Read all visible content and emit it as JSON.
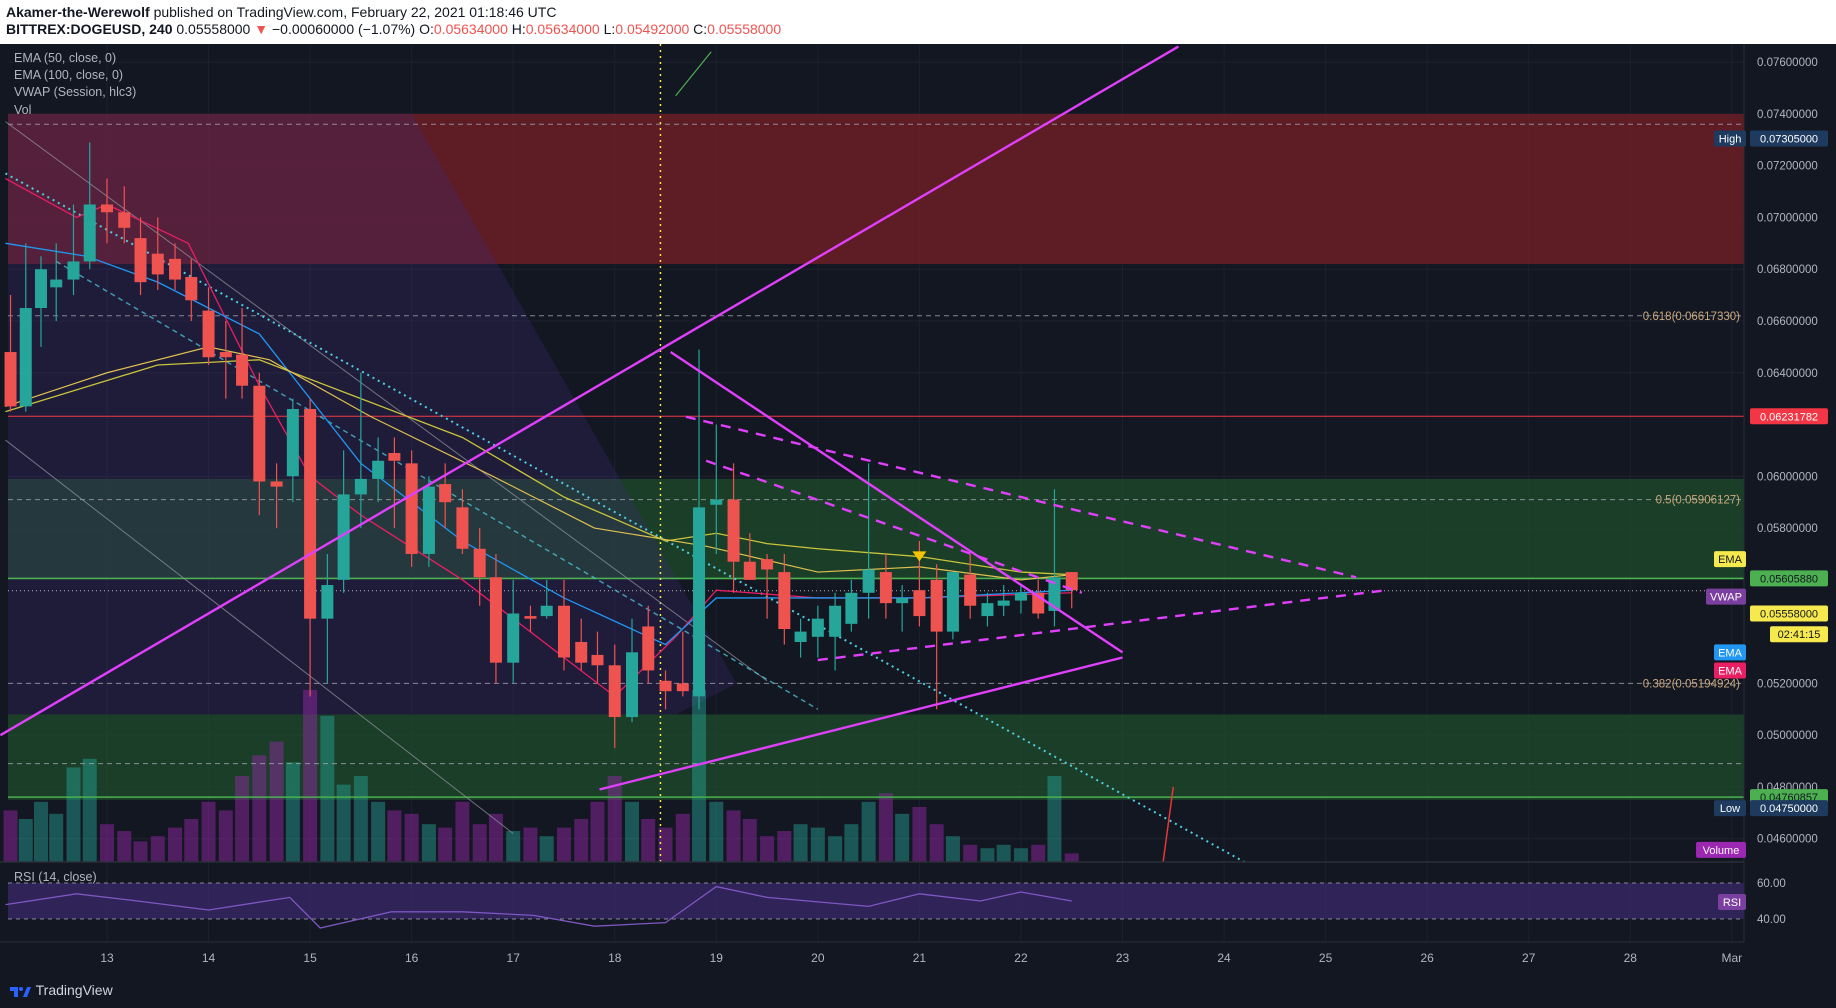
{
  "header": {
    "author": "Akamer-the-Werewolf",
    "published": "published on TradingView.com, February 22, 2021 01:18:46 UTC",
    "symbol": "BITTREX:DOGEUSD, 240",
    "last": "0.05558000",
    "change": "−0.00060000 (−1.07%)",
    "o_label": "O:",
    "o_val": "0.05634000",
    "h_label": "H:",
    "h_val": "0.05634000",
    "l_label": "L:",
    "l_val": "0.05492000",
    "c_label": "C:",
    "c_val": "0.05558000"
  },
  "legend": {
    "ema50": "EMA (50, close, 0)",
    "ema100": "EMA (100, close, 0)",
    "vwap": "VWAP (Session, hlc3)",
    "vol": "Vol",
    "rsi": "RSI (14, close)"
  },
  "colors": {
    "bg": "#131722",
    "up": "#26a69a",
    "down": "#ef5350",
    "magenta": "#e040fb",
    "fib": "#c8a97e",
    "cyan": "#4dd0e1",
    "ema50": "#c9c43a",
    "ema100": "#2196f3",
    "vwap": "#e91e63"
  },
  "price_axis": {
    "ticks": [
      "0.07600000",
      "0.07400000",
      "0.07200000",
      "0.07000000",
      "0.06800000",
      "0.06600000",
      "0.06400000",
      "0.06000000",
      "0.05800000",
      "0.05200000",
      "0.05000000",
      "0.04800000",
      "0.04600000"
    ],
    "tick_values": [
      0.076,
      0.074,
      0.072,
      0.07,
      0.068,
      0.066,
      0.064,
      0.06,
      0.058,
      0.052,
      0.05,
      0.048,
      0.046
    ],
    "min": 0.0451,
    "max": 0.0767
  },
  "rsi_axis": {
    "ticks": [
      "60.00",
      "40.00"
    ],
    "tick_values": [
      60,
      40
    ]
  },
  "time_axis": {
    "labels": [
      "13",
      "14",
      "15",
      "16",
      "17",
      "18",
      "19",
      "20",
      "21",
      "22",
      "23",
      "24",
      "25",
      "26",
      "27",
      "28",
      "Mar"
    ],
    "day_values": [
      13,
      14,
      15,
      16,
      17,
      18,
      19,
      20,
      21,
      22,
      23,
      24,
      25,
      26,
      27,
      28,
      29
    ]
  },
  "axis_badges": {
    "high_label": "High",
    "high_val": "0.07305000",
    "level_red": "0.06231782",
    "ema_label": "EMA",
    "price_green": "0.05605880",
    "vwap_label": "VWAP",
    "last_price": "0.05558000",
    "countdown": "02:41:15",
    "ema100_label": "EMA",
    "ema50_label": "EMA",
    "support_green": "0.04760857",
    "low_label": "Low",
    "low_val": "0.04750000",
    "volume_label": "Volume",
    "rsi_label": "RSI"
  },
  "fib_labels": [
    {
      "text": "0.618(0.06617330)",
      "value": 0.0662
    },
    {
      "text": "0.5(0.05906127)",
      "value": 0.0591
    },
    {
      "text": "0.382(0.05194924)",
      "value": 0.052
    }
  ],
  "chart_data": {
    "type": "candlestick",
    "interval": "240",
    "x_unit": "day of February 2021",
    "candles": [
      [
        12.05,
        0.0648,
        0.067,
        0.0625,
        0.0627
      ],
      [
        12.2,
        0.0627,
        0.069,
        0.0625,
        0.0665
      ],
      [
        12.35,
        0.0665,
        0.0685,
        0.065,
        0.068
      ],
      [
        12.5,
        0.0673,
        0.069,
        0.066,
        0.0676
      ],
      [
        12.67,
        0.0676,
        0.0705,
        0.067,
        0.0683
      ],
      [
        12.83,
        0.0683,
        0.0729,
        0.068,
        0.0705
      ],
      [
        13.0,
        0.0705,
        0.0715,
        0.069,
        0.0702
      ],
      [
        13.17,
        0.0702,
        0.0712,
        0.069,
        0.0696
      ],
      [
        13.33,
        0.0692,
        0.07,
        0.067,
        0.0675
      ],
      [
        13.5,
        0.0686,
        0.07,
        0.0672,
        0.0678
      ],
      [
        13.67,
        0.0684,
        0.069,
        0.0672,
        0.0676
      ],
      [
        13.83,
        0.0677,
        0.0684,
        0.066,
        0.0668
      ],
      [
        14.0,
        0.0664,
        0.0673,
        0.0643,
        0.0646
      ],
      [
        14.17,
        0.0648,
        0.066,
        0.063,
        0.0646
      ],
      [
        14.33,
        0.0647,
        0.0665,
        0.063,
        0.0635
      ],
      [
        14.5,
        0.0635,
        0.064,
        0.0585,
        0.0598
      ],
      [
        14.67,
        0.0598,
        0.0605,
        0.058,
        0.0596
      ],
      [
        14.83,
        0.06,
        0.063,
        0.059,
        0.0626
      ],
      [
        15.0,
        0.0626,
        0.063,
        0.0515,
        0.0545
      ],
      [
        15.17,
        0.0545,
        0.057,
        0.052,
        0.0558
      ],
      [
        15.33,
        0.056,
        0.061,
        0.0555,
        0.0593
      ],
      [
        15.5,
        0.0593,
        0.064,
        0.058,
        0.0599
      ],
      [
        15.67,
        0.0599,
        0.0615,
        0.059,
        0.0606
      ],
      [
        15.83,
        0.0609,
        0.0615,
        0.058,
        0.0606
      ],
      [
        16.0,
        0.0605,
        0.061,
        0.0565,
        0.057
      ],
      [
        16.17,
        0.057,
        0.06,
        0.0565,
        0.0596
      ],
      [
        16.33,
        0.0597,
        0.0605,
        0.058,
        0.059
      ],
      [
        16.5,
        0.0588,
        0.0595,
        0.057,
        0.0572
      ],
      [
        16.67,
        0.0572,
        0.058,
        0.055,
        0.0561
      ],
      [
        16.83,
        0.0561,
        0.057,
        0.052,
        0.0528
      ],
      [
        17.0,
        0.0528,
        0.056,
        0.052,
        0.0547
      ],
      [
        17.17,
        0.0546,
        0.055,
        0.054,
        0.0545
      ],
      [
        17.33,
        0.0546,
        0.056,
        0.0545,
        0.055
      ],
      [
        17.5,
        0.055,
        0.056,
        0.0525,
        0.053
      ],
      [
        17.67,
        0.0536,
        0.0545,
        0.0525,
        0.0528
      ],
      [
        17.83,
        0.0531,
        0.054,
        0.052,
        0.0527
      ],
      [
        18.0,
        0.0527,
        0.0535,
        0.0495,
        0.0507
      ],
      [
        18.17,
        0.0507,
        0.0545,
        0.0505,
        0.0532
      ],
      [
        18.33,
        0.0542,
        0.055,
        0.052,
        0.0525
      ],
      [
        18.5,
        0.0521,
        0.0525,
        0.051,
        0.0517
      ],
      [
        18.67,
        0.052,
        0.054,
        0.0515,
        0.0517
      ],
      [
        18.83,
        0.0515,
        0.0649,
        0.051,
        0.0588
      ],
      [
        19.0,
        0.0589,
        0.062,
        0.057,
        0.0591
      ],
      [
        19.17,
        0.0591,
        0.0605,
        0.0555,
        0.0567
      ],
      [
        19.33,
        0.0567,
        0.0578,
        0.0562,
        0.056
      ],
      [
        19.5,
        0.0568,
        0.057,
        0.0545,
        0.0564
      ],
      [
        19.67,
        0.0563,
        0.057,
        0.0535,
        0.0541
      ],
      [
        19.83,
        0.0536,
        0.0545,
        0.053,
        0.054
      ],
      [
        20.0,
        0.0538,
        0.055,
        0.053,
        0.0545
      ],
      [
        20.17,
        0.0538,
        0.0555,
        0.0525,
        0.055
      ],
      [
        20.33,
        0.0543,
        0.056,
        0.054,
        0.0555
      ],
      [
        20.5,
        0.0555,
        0.0605,
        0.0545,
        0.0564
      ],
      [
        20.67,
        0.0563,
        0.057,
        0.0545,
        0.0551
      ],
      [
        20.83,
        0.0551,
        0.0558,
        0.054,
        0.0553
      ],
      [
        21.0,
        0.0556,
        0.0575,
        0.0542,
        0.0546
      ],
      [
        21.17,
        0.056,
        0.0566,
        0.051,
        0.054
      ],
      [
        21.33,
        0.054,
        0.0563,
        0.0537,
        0.0563
      ],
      [
        21.5,
        0.0562,
        0.057,
        0.0545,
        0.055
      ],
      [
        21.67,
        0.0546,
        0.0555,
        0.0542,
        0.0551
      ],
      [
        21.83,
        0.055,
        0.0558,
        0.0546,
        0.0552
      ],
      [
        22.0,
        0.0552,
        0.0558,
        0.0547,
        0.0555
      ],
      [
        22.17,
        0.0555,
        0.056,
        0.0545,
        0.0547
      ],
      [
        22.33,
        0.0548,
        0.0595,
        0.0542,
        0.0561
      ],
      [
        22.5,
        0.0563,
        0.0563,
        0.0549,
        0.0556
      ]
    ],
    "volume_relative": [
      0.3,
      0.25,
      0.35,
      0.28,
      0.55,
      0.6,
      0.22,
      0.18,
      0.12,
      0.15,
      0.2,
      0.25,
      0.35,
      0.3,
      0.5,
      0.62,
      0.7,
      0.58,
      1.0,
      0.85,
      0.45,
      0.5,
      0.35,
      0.3,
      0.28,
      0.22,
      0.2,
      0.35,
      0.22,
      0.28,
      0.18,
      0.2,
      0.15,
      0.2,
      0.25,
      0.35,
      0.5,
      0.35,
      0.25,
      0.2,
      0.28,
      1.0,
      0.35,
      0.3,
      0.25,
      0.15,
      0.18,
      0.22,
      0.2,
      0.15,
      0.22,
      0.35,
      0.4,
      0.28,
      0.32,
      0.22,
      0.15,
      0.1,
      0.08,
      0.1,
      0.08,
      0.1,
      0.5,
      0.05
    ],
    "ema50": [
      [
        12.0,
        0.0625
      ],
      [
        13.5,
        0.0643
      ],
      [
        14.5,
        0.0645
      ],
      [
        15.5,
        0.063
      ],
      [
        16.5,
        0.0615
      ],
      [
        17.5,
        0.0592
      ],
      [
        18.5,
        0.0575
      ],
      [
        19.0,
        0.0578
      ],
      [
        19.5,
        0.0574
      ],
      [
        20.0,
        0.0572
      ],
      [
        21.0,
        0.0569
      ],
      [
        22.0,
        0.0563
      ],
      [
        22.5,
        0.0562
      ]
    ],
    "ema100": [
      [
        12.0,
        0.069
      ],
      [
        12.8,
        0.0685
      ],
      [
        13.5,
        0.0675
      ],
      [
        14.5,
        0.0655
      ],
      [
        15.5,
        0.0605
      ],
      [
        16.5,
        0.0575
      ],
      [
        17.5,
        0.0553
      ],
      [
        18.5,
        0.0535
      ],
      [
        19.0,
        0.0553
      ],
      [
        20.0,
        0.0553
      ],
      [
        21.0,
        0.0553
      ],
      [
        22.5,
        0.0556
      ]
    ],
    "vwap": [
      [
        12.0,
        0.0715
      ],
      [
        12.7,
        0.07
      ],
      [
        13.0,
        0.0705
      ],
      [
        13.8,
        0.069
      ],
      [
        14.5,
        0.0635
      ],
      [
        15.0,
        0.06
      ],
      [
        15.5,
        0.0585
      ],
      [
        16.5,
        0.056
      ],
      [
        17.5,
        0.053
      ],
      [
        18.0,
        0.0515
      ],
      [
        18.6,
        0.0538
      ],
      [
        19.0,
        0.0556
      ],
      [
        20.0,
        0.0553
      ],
      [
        21.0,
        0.0553
      ],
      [
        22.5,
        0.0555
      ]
    ],
    "long_ma": [
      [
        12.0,
        0.0627
      ],
      [
        13.0,
        0.064
      ],
      [
        14.0,
        0.065
      ],
      [
        14.6,
        0.0645
      ],
      [
        15.6,
        0.0623
      ],
      [
        16.8,
        0.06
      ],
      [
        17.8,
        0.058
      ],
      [
        18.9,
        0.0573
      ],
      [
        20.0,
        0.0563
      ],
      [
        21.0,
        0.0565
      ],
      [
        22.0,
        0.056
      ],
      [
        22.5,
        0.0562
      ]
    ],
    "rsi": [
      [
        12.0,
        48
      ],
      [
        12.7,
        54
      ],
      [
        13.3,
        50
      ],
      [
        14.0,
        45
      ],
      [
        14.8,
        52
      ],
      [
        15.1,
        35
      ],
      [
        15.8,
        44
      ],
      [
        16.5,
        44
      ],
      [
        17.2,
        42
      ],
      [
        17.8,
        36
      ],
      [
        18.5,
        38
      ],
      [
        19.0,
        58
      ],
      [
        19.5,
        52
      ],
      [
        20.5,
        47
      ],
      [
        21.0,
        54
      ],
      [
        21.6,
        50
      ],
      [
        22.0,
        55
      ],
      [
        22.5,
        50
      ]
    ],
    "levels": {
      "red_line": 0.06231782,
      "green_line_upper": 0.0560588,
      "green_line_lower": 0.04760857,
      "last_price": 0.05558,
      "high": 0.07305,
      "low": 0.0475
    },
    "zones": [
      {
        "name": "resistance",
        "from": 0.0682,
        "to": 0.074,
        "color": "#7b1e26"
      },
      {
        "name": "mid",
        "from": 0.056,
        "to": 0.0599,
        "color": "#1e4d2b"
      },
      {
        "name": "support",
        "from": 0.0475,
        "to": 0.0508,
        "color": "#1e4d2b"
      }
    ],
    "trendlines": [
      {
        "style": "solid",
        "from": [
          11.95,
          0.05
        ],
        "to": [
          23.55,
          0.0766
        ]
      },
      {
        "style": "solid",
        "from": [
          18.55,
          0.0648
        ],
        "to": [
          23.0,
          0.0532
        ]
      },
      {
        "style": "solid",
        "from": [
          17.85,
          0.0479
        ],
        "to": [
          23.0,
          0.053
        ]
      },
      {
        "style": "dashed",
        "from": [
          18.7,
          0.0623
        ],
        "to": [
          25.3,
          0.0561
        ]
      },
      {
        "style": "dashed",
        "from": [
          18.9,
          0.0606
        ],
        "to": [
          22.6,
          0.0555
        ]
      },
      {
        "style": "dashed",
        "from": [
          20.0,
          0.0529
        ],
        "to": [
          25.6,
          0.0556
        ]
      }
    ],
    "fib_lines": [
      0.0736,
      0.0662,
      0.0591,
      0.052,
      0.0489
    ],
    "vline_day": 18.45,
    "cyan_trend": [
      [
        12.0,
        0.0717
      ],
      [
        24.2,
        0.0451
      ]
    ],
    "cyan_trend2": [
      [
        12.5,
        0.0683
      ],
      [
        20.0,
        0.051
      ]
    ]
  }
}
